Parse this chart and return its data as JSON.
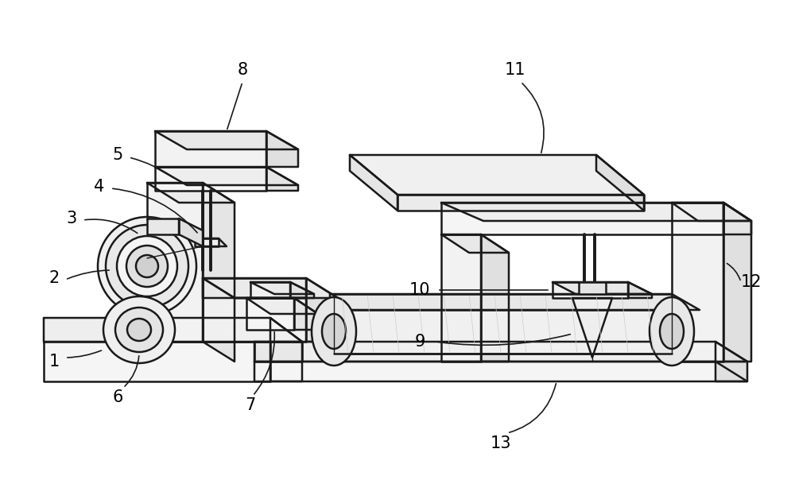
{
  "bg_color": "#ffffff",
  "line_color": "#1a1a1a",
  "lw": 1.8,
  "tlw": 1.0,
  "fig_width": 10.0,
  "fig_height": 6.33
}
